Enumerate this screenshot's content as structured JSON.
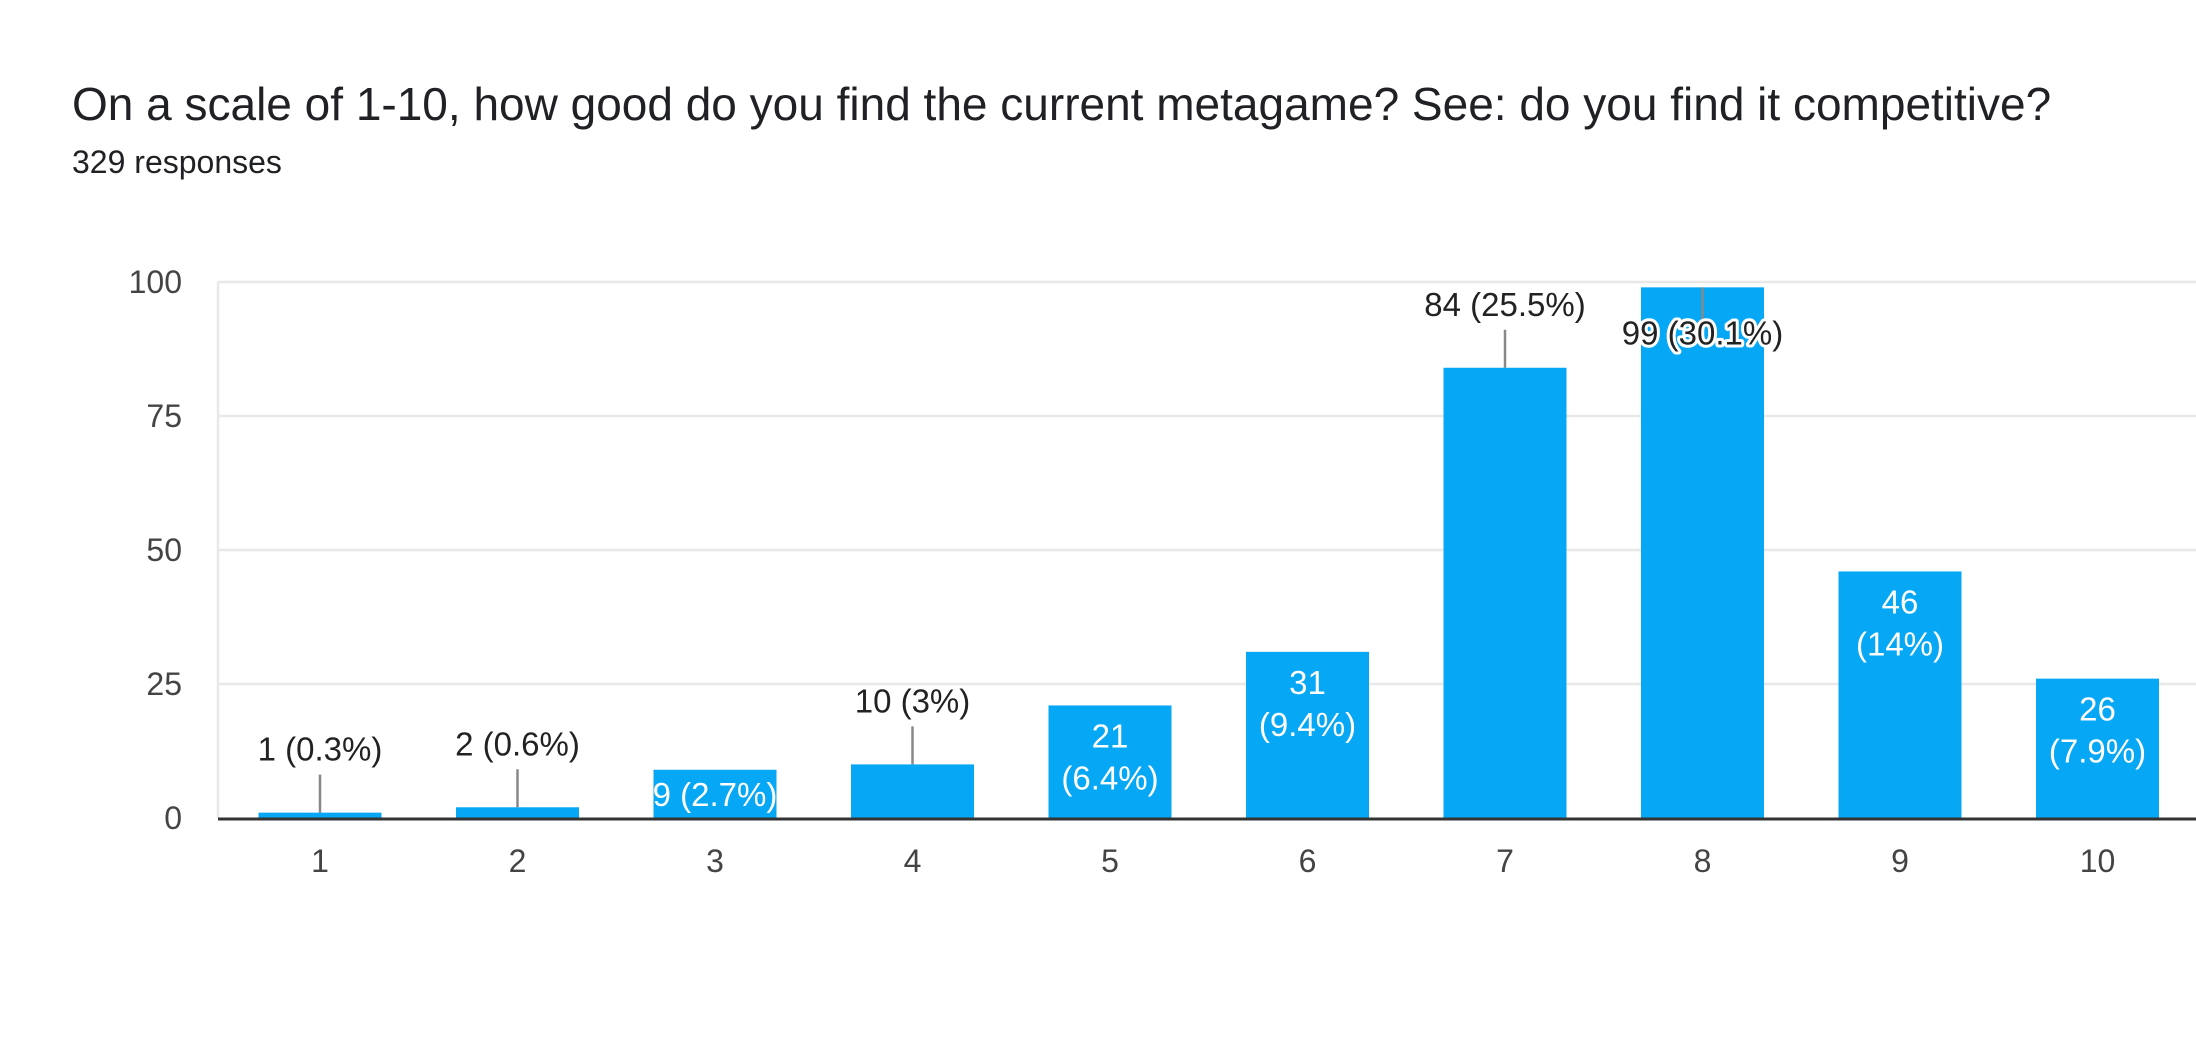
{
  "header": {
    "title": "On a scale of 1-10, how good do you find the current metagame? See: do you find it competitive?",
    "responses": "329 responses"
  },
  "colors": {
    "bar": "#06a7f5",
    "grid": "#e8e8e8",
    "axis": "#333333",
    "label_outside": "#222222",
    "label_inside": "#ffffff",
    "leader": "#888888"
  },
  "chart_data": {
    "type": "bar",
    "categories": [
      "1",
      "2",
      "3",
      "4",
      "5",
      "6",
      "7",
      "8",
      "9",
      "10"
    ],
    "values": [
      1,
      2,
      9,
      10,
      21,
      31,
      84,
      99,
      46,
      26
    ],
    "data_labels": [
      [
        "1 (0.3%)"
      ],
      [
        "2 (0.6%)"
      ],
      [
        "9 (2.7%)"
      ],
      [
        "10 (3%)"
      ],
      [
        "21",
        "(6.4%)"
      ],
      [
        "31",
        "(9.4%)"
      ],
      [
        "84 (25.5%)"
      ],
      [
        "99 (30.1%)"
      ],
      [
        "46",
        "(14%)"
      ],
      [
        "26",
        "(7.9%)"
      ]
    ],
    "label_position": [
      "outside",
      "outside",
      "inside",
      "outside",
      "inside",
      "inside",
      "outside",
      "inside-top",
      "inside",
      "inside"
    ],
    "yticks": [
      0,
      25,
      50,
      75,
      100
    ],
    "ylim": [
      0,
      100
    ],
    "grid": true,
    "legend": "none"
  }
}
